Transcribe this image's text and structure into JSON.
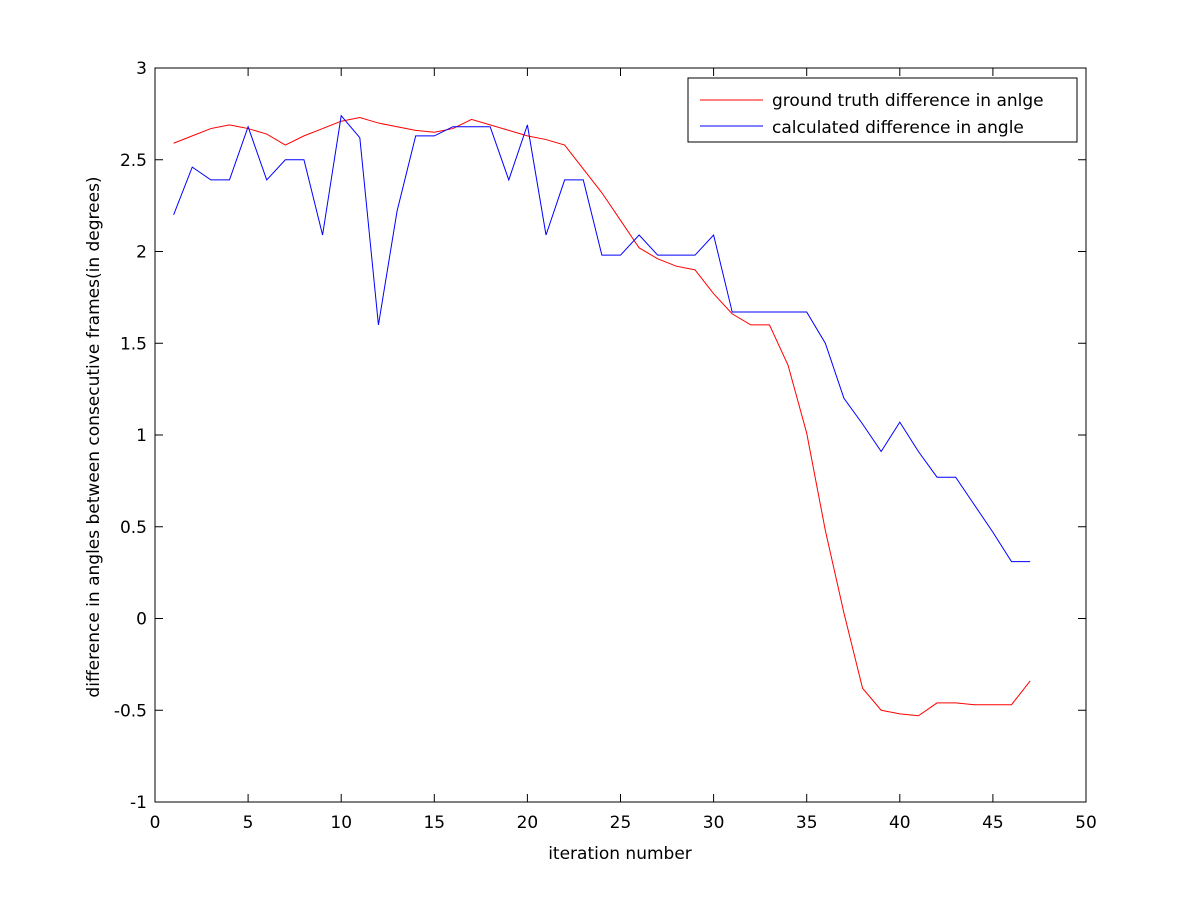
{
  "chart_data": {
    "type": "line",
    "title": "",
    "xlabel": "iteration number",
    "ylabel": "difference in angles between consecutive frames(in degrees)",
    "xlim": [
      0,
      50
    ],
    "ylim": [
      -1,
      3
    ],
    "xticks": [
      0,
      5,
      10,
      15,
      20,
      25,
      30,
      35,
      40,
      45,
      50
    ],
    "yticks": [
      -1,
      -0.5,
      0,
      0.5,
      1,
      1.5,
      2,
      2.5,
      3
    ],
    "grid": false,
    "legend_position": "top-right",
    "x": [
      1,
      2,
      3,
      4,
      5,
      6,
      7,
      8,
      9,
      10,
      11,
      12,
      13,
      14,
      15,
      16,
      17,
      18,
      19,
      20,
      21,
      22,
      23,
      24,
      25,
      26,
      27,
      28,
      29,
      30,
      31,
      32,
      33,
      34,
      35,
      36,
      37,
      38,
      39,
      40,
      41,
      42,
      43,
      44,
      45,
      46,
      47
    ],
    "series": [
      {
        "name": "ground truth difference in anlge",
        "color": "#ff0000",
        "values": [
          2.59,
          2.63,
          2.67,
          2.69,
          2.67,
          2.64,
          2.58,
          2.63,
          2.67,
          2.71,
          2.73,
          2.7,
          2.68,
          2.66,
          2.65,
          2.67,
          2.72,
          2.69,
          2.66,
          2.63,
          2.61,
          2.58,
          2.45,
          2.32,
          2.17,
          2.02,
          1.96,
          1.92,
          1.9,
          1.77,
          1.66,
          1.6,
          1.6,
          1.38,
          1.01,
          0.48,
          0.03,
          -0.38,
          -0.5,
          -0.52,
          -0.53,
          -0.46,
          -0.46,
          -0.47,
          -0.47,
          -0.47,
          -0.34
        ]
      },
      {
        "name": "calculated difference in angle",
        "color": "#0000ff",
        "values": [
          2.2,
          2.46,
          2.39,
          2.39,
          2.68,
          2.39,
          2.5,
          2.5,
          2.09,
          2.74,
          2.62,
          1.6,
          2.22,
          2.63,
          2.63,
          2.68,
          2.68,
          2.68,
          2.39,
          2.69,
          2.09,
          2.39,
          2.39,
          1.98,
          1.98,
          2.09,
          1.98,
          1.98,
          1.98,
          2.09,
          1.67,
          1.67,
          1.67,
          1.67,
          1.67,
          1.5,
          1.2,
          1.06,
          0.91,
          1.07,
          0.91,
          0.77,
          0.77,
          0.62,
          0.47,
          0.31,
          0.31
        ]
      }
    ]
  }
}
